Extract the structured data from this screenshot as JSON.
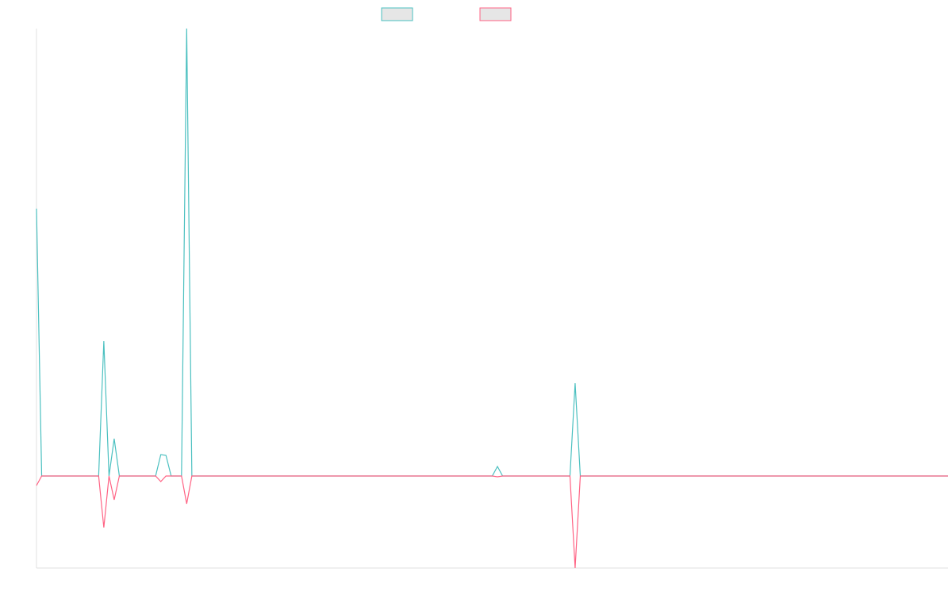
{
  "chart_data": {
    "type": "line",
    "ylim": [
      -11.6,
      56.4
    ],
    "grid": false,
    "legend": "top",
    "series": [
      {
        "color": "#4bc0c0",
        "values": [
          33.7,
          0,
          0,
          0,
          0,
          0,
          0,
          0,
          0,
          0,
          0,
          0,
          0,
          17.0,
          0,
          4.7,
          0,
          0,
          0,
          0,
          0,
          0,
          0,
          0,
          2.7,
          2.6,
          0,
          0,
          0,
          56.4,
          0,
          0,
          0,
          0,
          0,
          0,
          0,
          0,
          0,
          0,
          0,
          0,
          0,
          0,
          0,
          0,
          0,
          0,
          0,
          0,
          0,
          0,
          0,
          0,
          0,
          0,
          0,
          0,
          0,
          0,
          0,
          0,
          0,
          0,
          0,
          0,
          0,
          0,
          0,
          0,
          0,
          0,
          0,
          0,
          0,
          0,
          0,
          0,
          0,
          0,
          0,
          0,
          0,
          0,
          0,
          0,
          0,
          0,
          0,
          1.2,
          0,
          0,
          0,
          0,
          0,
          0,
          0,
          0,
          0,
          0,
          0,
          0,
          0,
          0,
          11.7,
          0,
          0,
          0,
          0,
          0,
          0,
          0,
          0,
          0,
          0,
          0,
          0,
          0,
          0,
          0,
          0,
          0,
          0,
          0,
          0,
          0,
          0,
          0,
          0,
          0,
          0,
          0,
          0,
          0,
          0,
          0,
          0,
          0,
          0,
          0,
          0,
          0,
          0,
          0,
          0,
          0,
          0,
          0,
          0,
          0,
          0,
          0,
          0,
          0,
          0,
          0,
          0,
          0,
          0,
          0,
          0,
          0,
          0,
          0,
          0,
          0,
          0,
          0,
          0,
          0,
          0,
          0,
          0,
          0,
          0,
          0,
          0
        ]
      },
      {
        "color": "#ff6384",
        "values": [
          -1.2,
          0,
          0,
          0,
          0,
          0,
          0,
          0,
          0,
          0,
          0,
          0,
          0,
          -6.5,
          0,
          -3.0,
          0,
          0,
          0,
          0,
          0,
          0,
          0,
          0,
          -0.7,
          0,
          0,
          0,
          0,
          -3.5,
          0,
          0,
          0,
          0,
          0,
          0,
          0,
          0,
          0,
          0,
          0,
          0,
          0,
          0,
          0,
          0,
          0,
          0,
          0,
          0,
          0,
          0,
          0,
          0,
          0,
          0,
          0,
          0,
          0,
          0,
          0,
          0,
          0,
          0,
          0,
          0,
          0,
          0,
          0,
          0,
          0,
          0,
          0,
          0,
          0,
          0,
          0,
          0,
          0,
          0,
          0,
          0,
          0,
          0,
          0,
          0,
          0,
          0,
          0,
          -0.1,
          0,
          0,
          0,
          0,
          0,
          0,
          0,
          0,
          0,
          0,
          0,
          0,
          0,
          0,
          -11.6,
          0,
          0,
          0,
          0,
          0,
          0,
          0,
          0,
          0,
          0,
          0,
          0,
          0,
          0,
          0,
          0,
          0,
          0,
          0,
          0,
          0,
          0,
          0,
          0,
          0,
          0,
          0,
          0,
          0,
          0,
          0,
          0,
          0,
          0,
          0,
          0,
          0,
          0,
          0,
          0,
          0,
          0,
          0,
          0,
          0,
          0,
          0,
          0,
          0,
          0,
          0,
          0,
          0,
          0,
          0,
          0,
          0,
          0,
          0,
          0,
          0,
          0,
          0,
          0,
          0,
          0,
          0,
          0,
          0,
          0,
          0,
          0
        ]
      }
    ]
  }
}
